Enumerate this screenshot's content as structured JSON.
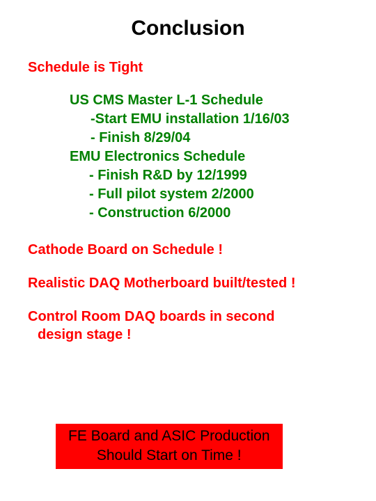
{
  "title": "Conclusion",
  "schedule_heading": "Schedule is Tight",
  "green_lines": [
    "US CMS Master L-1 Schedule",
    "-Start EMU installation 1/16/03",
    "- Finish 8/29/04",
    "EMU Electronics Schedule",
    "- Finish R&D by 12/1999",
    "- Full pilot system 2/2000",
    "- Construction 6/2000"
  ],
  "point1": "Cathode Board on Schedule !",
  "point2": "Realistic DAQ Motherboard built/tested !",
  "point3_line1": "Control Room  DAQ boards in second",
  "point3_line2": "design stage !",
  "highlight_line1": "FE Board and ASIC Production",
  "highlight_line2": "Should Start on Time !",
  "colors": {
    "title": "#000000",
    "red": "#ff0000",
    "green": "#008000",
    "highlight_bg": "#ff0000",
    "highlight_text": "#000000",
    "background": "#ffffff"
  },
  "fonts": {
    "family": "Arial",
    "title_size_pt": 22,
    "body_size_pt": 15,
    "highlight_size_pt": 16
  }
}
